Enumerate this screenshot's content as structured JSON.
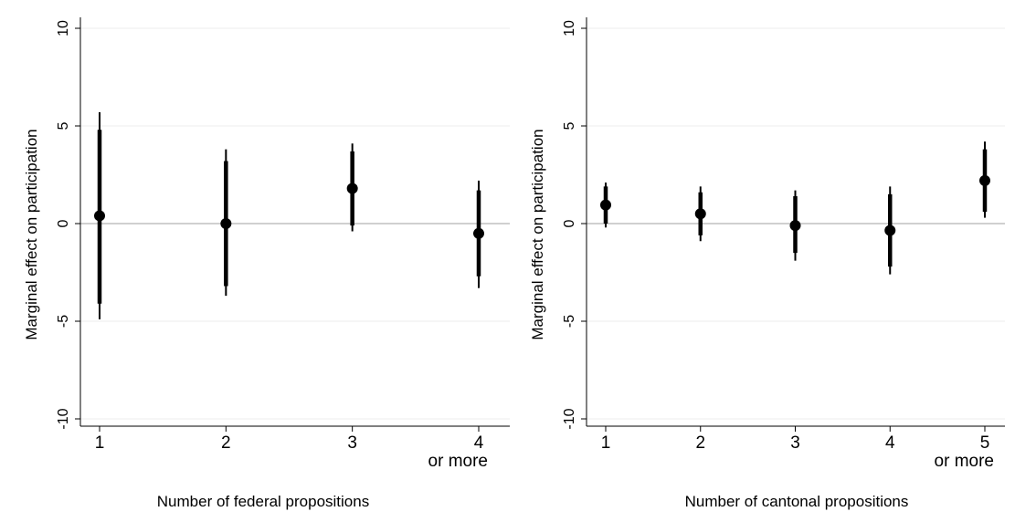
{
  "chart_data": [
    {
      "type": "scatter",
      "xlabel": "Number of federal propositions",
      "ylabel": "Marginal effect on participation",
      "ylim": [
        -10,
        10
      ],
      "yticks": [
        "-10",
        "-5",
        "0",
        "5",
        "10"
      ],
      "categories": [
        [
          "1"
        ],
        [
          "2"
        ],
        [
          "3"
        ],
        [
          "4",
          "or more"
        ]
      ],
      "points": [
        {
          "estimate": 0.4,
          "ci90": [
            -4.1,
            4.8
          ],
          "ci95": [
            -4.9,
            5.7
          ]
        },
        {
          "estimate": 0.0,
          "ci90": [
            -3.2,
            3.2
          ],
          "ci95": [
            -3.7,
            3.8
          ]
        },
        {
          "estimate": 1.8,
          "ci90": [
            -0.1,
            3.7
          ],
          "ci95": [
            -0.4,
            4.1
          ]
        },
        {
          "estimate": -0.5,
          "ci90": [
            -2.7,
            1.7
          ],
          "ci95": [
            -3.3,
            2.2
          ]
        }
      ],
      "reference_line": 0,
      "grid": true
    },
    {
      "type": "scatter",
      "xlabel": "Number of cantonal propositions",
      "ylabel": "Marginal effect on participation",
      "ylim": [
        -10,
        10
      ],
      "yticks": [
        "-10",
        "-5",
        "0",
        "5",
        "10"
      ],
      "categories": [
        [
          "1"
        ],
        [
          "2"
        ],
        [
          "3"
        ],
        [
          "4"
        ],
        [
          "5",
          "or more"
        ]
      ],
      "points": [
        {
          "estimate": 0.95,
          "ci90": [
            0.0,
            1.9
          ],
          "ci95": [
            -0.2,
            2.1
          ]
        },
        {
          "estimate": 0.5,
          "ci90": [
            -0.6,
            1.6
          ],
          "ci95": [
            -0.9,
            1.9
          ]
        },
        {
          "estimate": -0.1,
          "ci90": [
            -1.5,
            1.4
          ],
          "ci95": [
            -1.9,
            1.7
          ]
        },
        {
          "estimate": -0.35,
          "ci90": [
            -2.2,
            1.5
          ],
          "ci95": [
            -2.6,
            1.9
          ]
        },
        {
          "estimate": 2.2,
          "ci90": [
            0.6,
            3.8
          ],
          "ci95": [
            0.3,
            4.2
          ]
        }
      ],
      "reference_line": 0,
      "grid": true
    }
  ]
}
